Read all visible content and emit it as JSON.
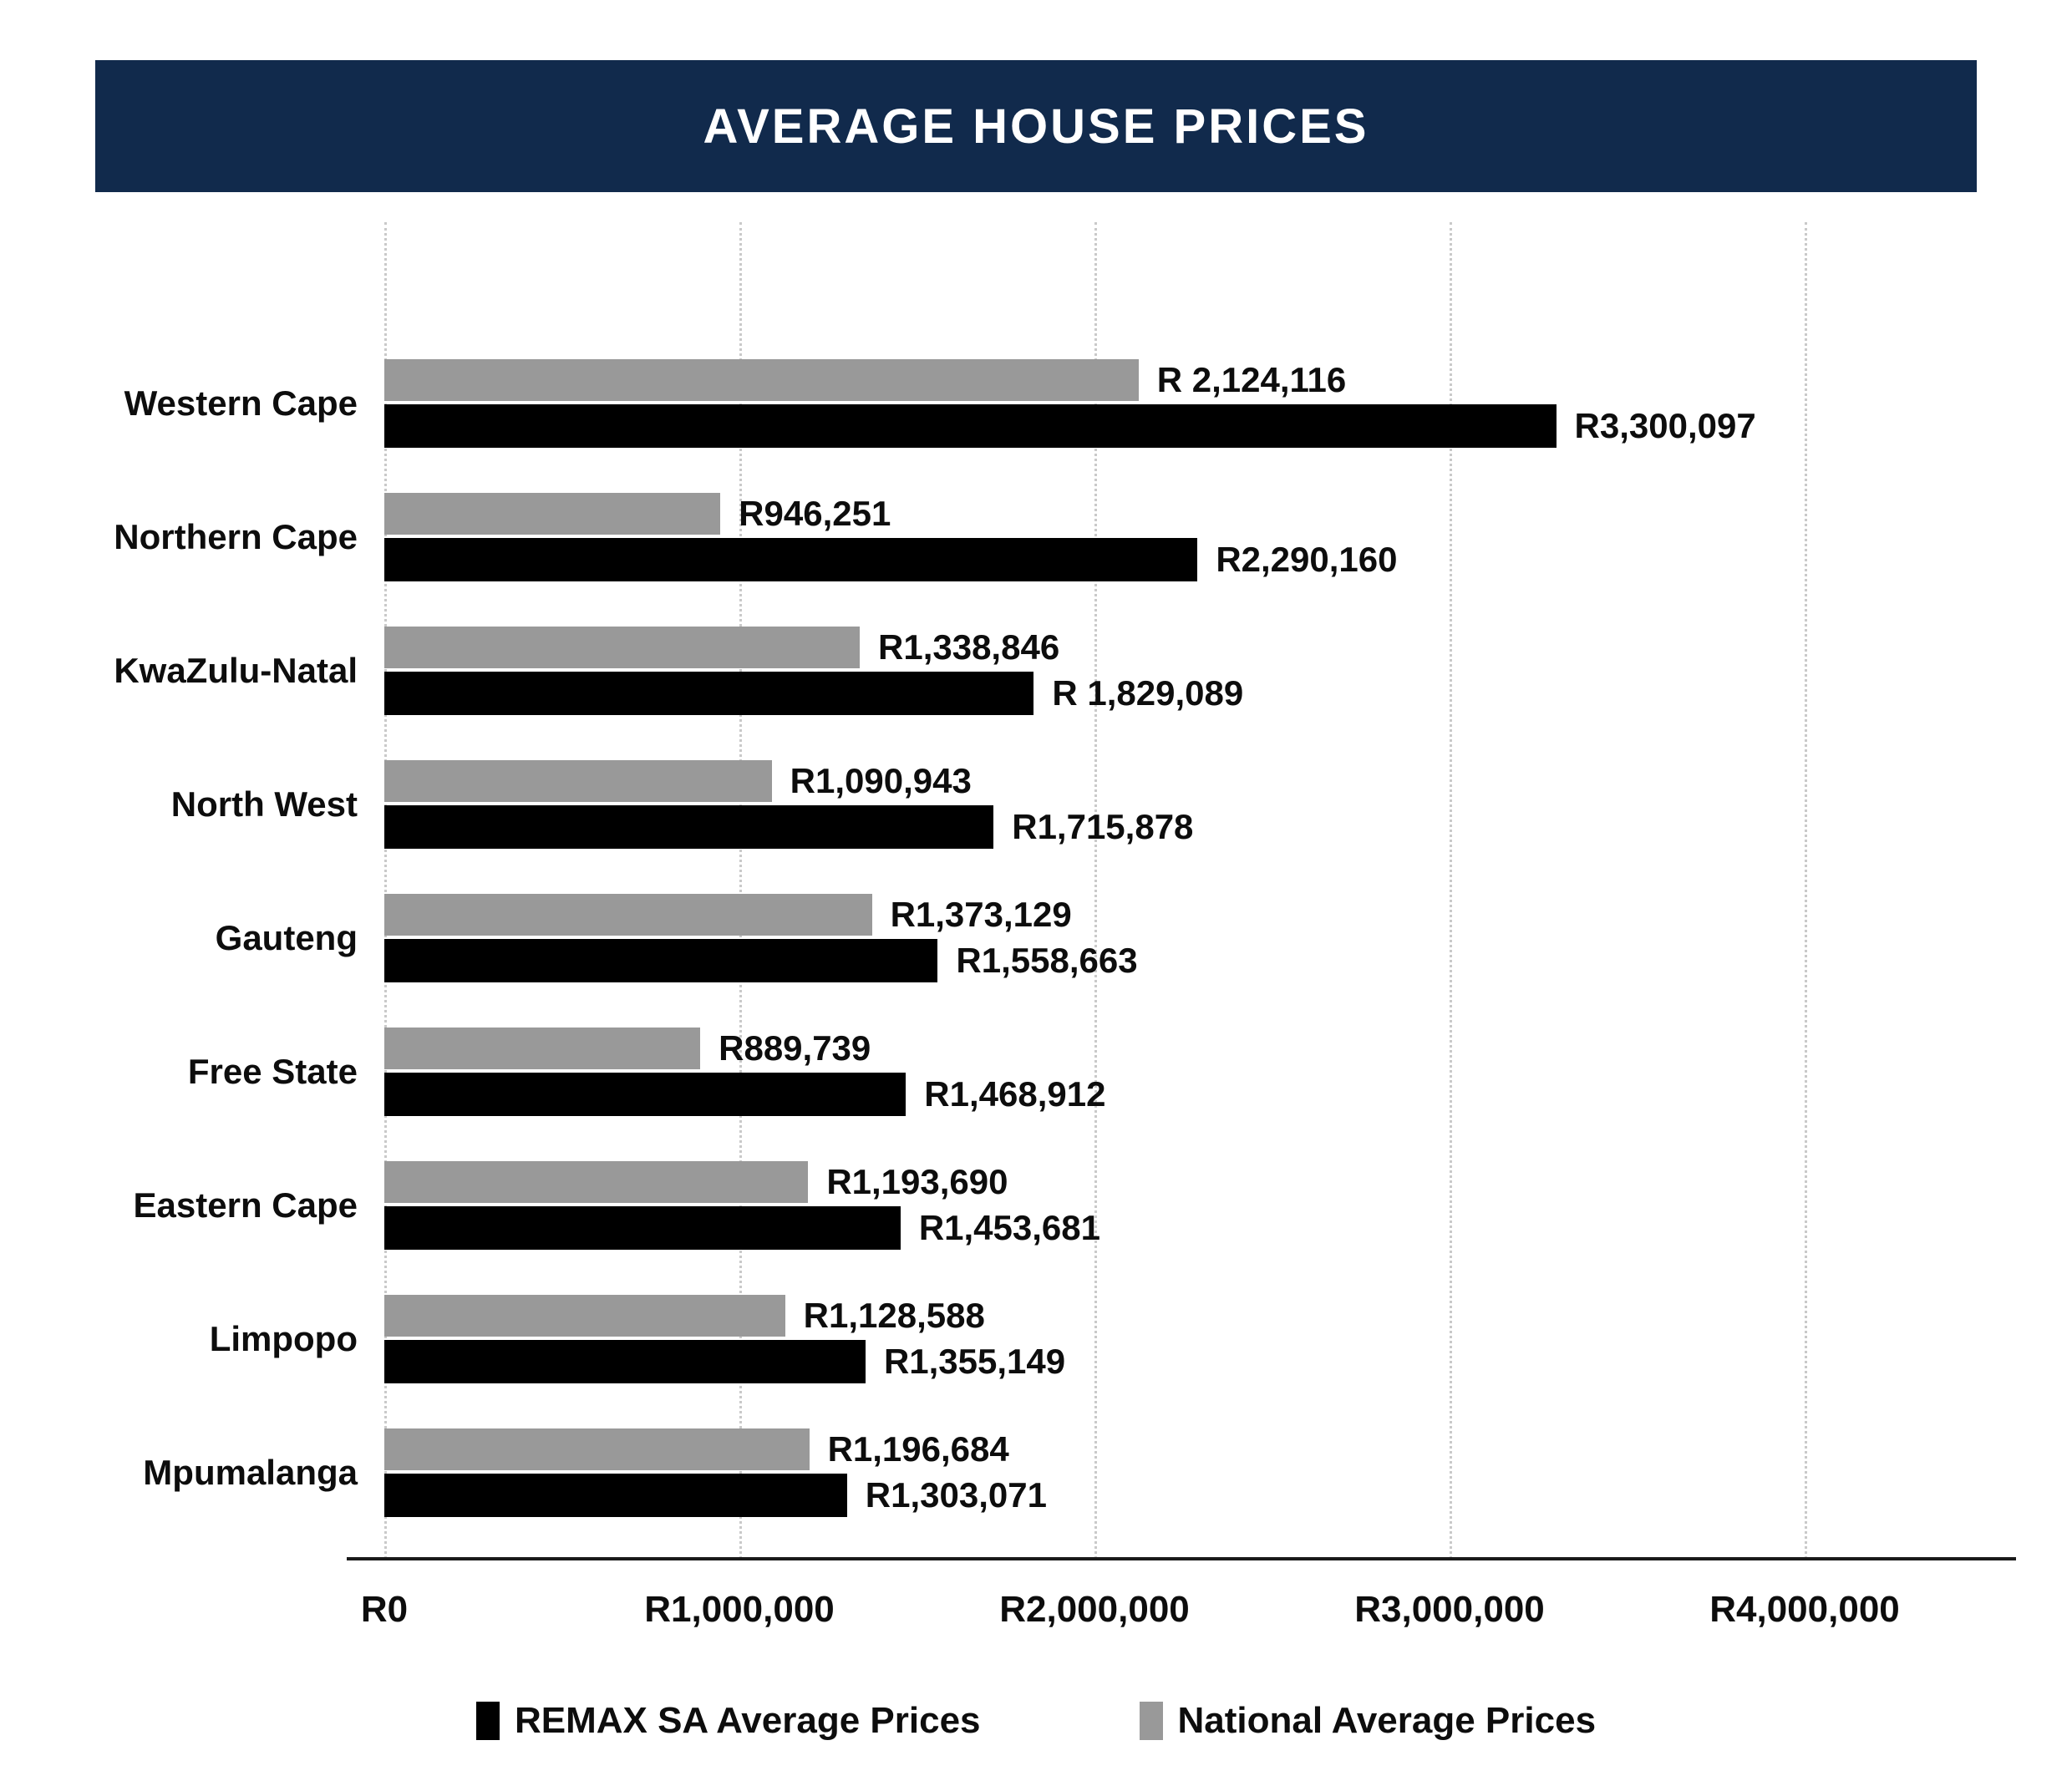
{
  "title": "AVERAGE HOUSE PRICES",
  "colors": {
    "header_bg": "#112A4C",
    "title_text": "#FFFFFF",
    "remax_bar": "#000000",
    "national_bar": "#999999",
    "gridline": "#C9C9C9",
    "axis_line": "#1A1A1A",
    "text": "#0D0D0D"
  },
  "chart_data": {
    "type": "bar",
    "orientation": "horizontal",
    "title": "AVERAGE HOUSE PRICES",
    "grid": "vertical-dotted",
    "legend_position": "bottom",
    "categories": [
      "Western Cape",
      "Northern Cape",
      "KwaZulu-Natal",
      "North West",
      "Gauteng",
      "Free State",
      "Eastern Cape",
      "Limpopo",
      "Mpumalanga"
    ],
    "series": [
      {
        "name": "REMAX SA Average Prices",
        "color": "#000000",
        "values": [
          3300097,
          2290160,
          1829089,
          1715878,
          1558663,
          1468912,
          1453681,
          1355149,
          1303071
        ],
        "labels": [
          "R3,300,097",
          "R2,290,160",
          "R 1,829,089",
          "R1,715,878",
          "R1,558,663",
          "R1,468,912",
          "R1,453,681",
          "R1,355,149",
          "R1,303,071"
        ]
      },
      {
        "name": "National Average Prices",
        "color": "#999999",
        "values": [
          2124116,
          946251,
          1338846,
          1090943,
          1373129,
          889739,
          1193690,
          1128588,
          1196684
        ],
        "labels": [
          "R 2,124,116",
          "R946,251",
          "R1,338,846",
          "R1,090,943",
          "R1,373,129",
          "R889,739",
          "R1,193,690",
          "R1,128,588",
          "R1,196,684"
        ]
      }
    ],
    "x_axis": {
      "ticks": [
        "R0",
        "R1,000,000",
        "R2,000,000",
        "R3,000,000",
        "R4,000,000"
      ],
      "tick_values": [
        0,
        1000000,
        2000000,
        3000000,
        4000000
      ],
      "max_value_shown": 4000000
    },
    "legend": [
      {
        "label": "REMAX SA Average Prices",
        "color": "#000000"
      },
      {
        "label": "National Average Prices",
        "color": "#999999"
      }
    ]
  }
}
